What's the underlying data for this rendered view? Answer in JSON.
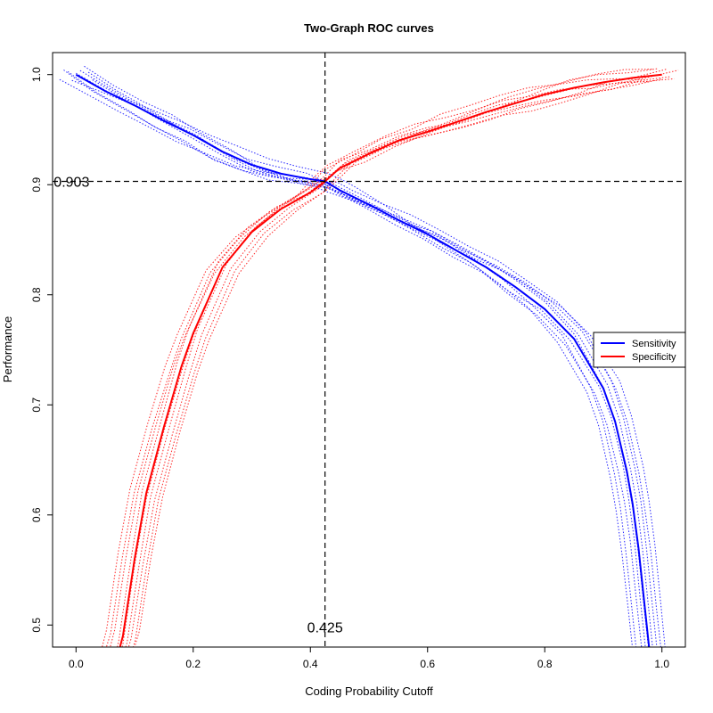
{
  "chart_data": {
    "type": "line",
    "title": "Two-Graph ROC curves",
    "xlabel": "Coding Probability Cutoff",
    "ylabel": "Performance",
    "xlim": [
      -0.04,
      1.04
    ],
    "ylim": [
      0.48,
      1.02
    ],
    "xticks": [
      0.0,
      0.2,
      0.4,
      0.6,
      0.8,
      1.0
    ],
    "xtick_labels": [
      "0.0",
      "0.2",
      "0.4",
      "0.6",
      "0.8",
      "1.0"
    ],
    "yticks": [
      0.5,
      0.6,
      0.7,
      0.8,
      0.9,
      1.0
    ],
    "ytick_labels": [
      "0.5",
      "0.6",
      "0.7",
      "0.8",
      "0.9",
      "1.0"
    ],
    "grid": false,
    "legend_position": "right",
    "series": [
      {
        "name": "Sensitivity",
        "color": "#0000ff",
        "x": [
          0.0,
          0.05,
          0.1,
          0.15,
          0.2,
          0.25,
          0.3,
          0.35,
          0.4,
          0.425,
          0.45,
          0.5,
          0.55,
          0.6,
          0.65,
          0.7,
          0.75,
          0.8,
          0.85,
          0.9,
          0.92,
          0.94,
          0.95,
          0.96,
          0.97,
          0.98
        ],
        "y": [
          1.0,
          0.985,
          0.972,
          0.958,
          0.945,
          0.93,
          0.918,
          0.91,
          0.905,
          0.903,
          0.895,
          0.882,
          0.868,
          0.855,
          0.84,
          0.825,
          0.807,
          0.787,
          0.76,
          0.715,
          0.685,
          0.64,
          0.61,
          0.57,
          0.52,
          0.47
        ]
      },
      {
        "name": "Specificity",
        "color": "#ff0000",
        "x": [
          0.07,
          0.08,
          0.1,
          0.12,
          0.15,
          0.18,
          0.2,
          0.25,
          0.3,
          0.35,
          0.4,
          0.425,
          0.45,
          0.5,
          0.55,
          0.6,
          0.65,
          0.7,
          0.75,
          0.8,
          0.85,
          0.9,
          0.95,
          1.0
        ],
        "y": [
          0.47,
          0.49,
          0.56,
          0.62,
          0.68,
          0.735,
          0.765,
          0.825,
          0.857,
          0.878,
          0.893,
          0.903,
          0.915,
          0.928,
          0.94,
          0.948,
          0.957,
          0.966,
          0.974,
          0.982,
          0.988,
          0.993,
          0.997,
          1.0
        ]
      }
    ],
    "reference_lines": {
      "vertical_x": 0.425,
      "horizontal_y": 0.903
    },
    "annotations": [
      {
        "text": "0.903",
        "x": 0.0,
        "y": 0.903
      },
      {
        "text": "0.425",
        "x": 0.425,
        "y": 0.5
      }
    ]
  }
}
